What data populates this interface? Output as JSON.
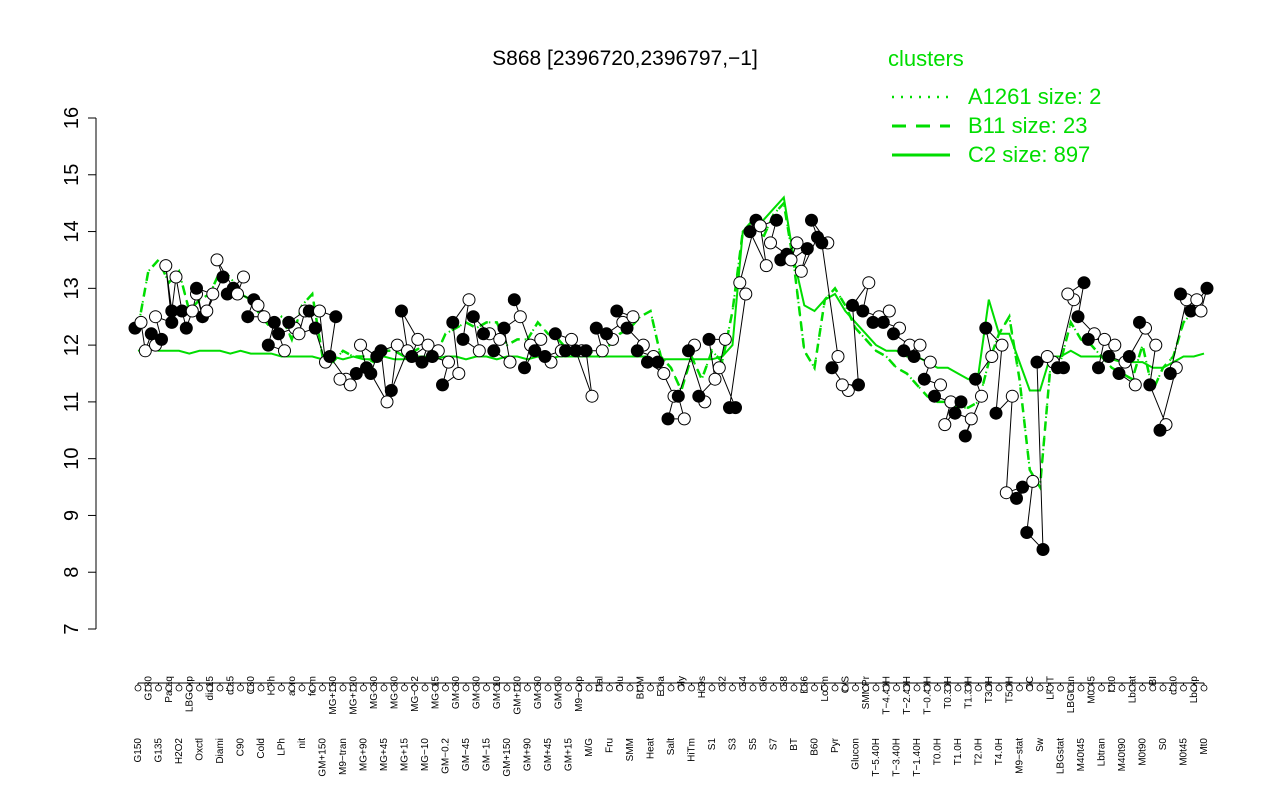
{
  "chart_data": {
    "type": "line",
    "title": "S868 [2396720,2396797,−1]",
    "xlabel": "",
    "ylabel": "",
    "ylim": [
      7,
      16
    ],
    "yticks": [
      7,
      8,
      9,
      10,
      11,
      12,
      13,
      14,
      15,
      16
    ],
    "x_tick_labels": [
      "G150",
      "G180",
      "G135",
      "Paraq",
      "H2O2",
      "LBGexp",
      "Oxctl",
      "dia15",
      "Diami",
      "dia5",
      "C90",
      "C30",
      "Cold",
      "HPh",
      "LPh",
      "aero",
      "nit",
      "ferm",
      "GM+150",
      "MG+150",
      "M9−tran",
      "MG+120",
      "MG+90",
      "MG+60",
      "MG+45",
      "MG+30",
      "MG+15",
      "MG−0.2",
      "MG−10",
      "MG−15",
      "GM−0.2",
      "GM−60",
      "GM−45",
      "GM−30",
      "GM−15",
      "GM−10",
      "GM+150",
      "GM+120",
      "GM+90",
      "GM+60",
      "GM+45",
      "GM+30",
      "GM+15",
      "M9−exp",
      "M/G",
      "Mal",
      "Fru",
      "Glu",
      "SMM",
      "BMM",
      "Heat",
      "Etha",
      "Salt",
      "Gly",
      "HiTm",
      "HiOs",
      "S1",
      "S2",
      "S3",
      "S4",
      "S5",
      "S6",
      "S7",
      "S8",
      "BT",
      "B36",
      "B60",
      "LoTm",
      "Pyr",
      "G/S",
      "Glucon",
      "SMMPr",
      "T−5.40H",
      "T−4.40H",
      "T−3.40H",
      "T−2.40H",
      "T−1.40H",
      "T−0.40H",
      "T0.0H",
      "T0.30H",
      "T1.0H",
      "T1.30H",
      "T2.0H",
      "T3.0H",
      "T4.0H",
      "T5.0H",
      "M9−stat",
      "BC",
      "Sw",
      "LPhT",
      "LBGstat",
      "LBGtran",
      "M40t45",
      "M0t45",
      "Lbtran",
      "Mt0",
      "M40t90",
      "Lbstat",
      "M0t90",
      "BI",
      "S0",
      "dia0",
      "M0t45",
      "Lbexp",
      "Mt0"
    ],
    "series": [
      {
        "name": "A1261 size: 2",
        "style": "dotted",
        "values": [
          12.3,
          13.3,
          13.5,
          13.1,
          13.3,
          12.6,
          12.8,
          12.9,
          13.3,
          13.2,
          12.9,
          12.8,
          12.5,
          12.3,
          12.5,
          12.1,
          12.7,
          12.9,
          11.8,
          11.7,
          11.9,
          11.8,
          11.8,
          11.7,
          11.9,
          11.9,
          11.8,
          11.9,
          12.0,
          11.8,
          12.2,
          12.3,
          12.4,
          12.3,
          12.4,
          12.4,
          12.0,
          12.1,
          12.1,
          12.4,
          12.2,
          12.1,
          11.9,
          11.8,
          11.9,
          11.8,
          12.0,
          12.2,
          12.3,
          12.5,
          12.6,
          11.8,
          11.6,
          11.2,
          11.8,
          11.4,
          11.9,
          11.7,
          12.6,
          14.0,
          14.2,
          13.9,
          14.3,
          14.5,
          13.4,
          11.9,
          11.6,
          12.8,
          13.0,
          12.7,
          12.3,
          12.1,
          11.9,
          11.8,
          11.6,
          11.5,
          11.3,
          11.1,
          11.0,
          11.0,
          10.9,
          10.9,
          11.0,
          11.7,
          12.2,
          12.5,
          11.4,
          9.8,
          9.5,
          11.6,
          11.7,
          12.4,
          12.1,
          12.0,
          11.8,
          11.6,
          11.5,
          11.4,
          12.0,
          11.2,
          11.6,
          11.8,
          12.4,
          12.6,
          12.6
        ]
      },
      {
        "name": "B11 size: 23",
        "style": "dashed",
        "values": [
          12.3,
          13.3,
          13.5,
          13.1,
          13.3,
          12.6,
          12.8,
          12.9,
          13.3,
          13.2,
          12.9,
          12.8,
          12.5,
          12.3,
          12.5,
          12.1,
          12.7,
          12.9,
          11.8,
          11.7,
          11.9,
          11.8,
          11.8,
          11.7,
          11.9,
          11.9,
          11.8,
          11.9,
          12.0,
          11.8,
          12.2,
          12.3,
          12.4,
          12.3,
          12.4,
          12.4,
          12.0,
          12.1,
          12.1,
          12.4,
          12.2,
          12.1,
          11.9,
          11.8,
          11.9,
          11.8,
          12.0,
          12.2,
          12.3,
          12.5,
          12.6,
          11.8,
          11.6,
          11.2,
          11.8,
          11.4,
          11.9,
          11.7,
          12.6,
          14.0,
          14.2,
          13.9,
          14.3,
          14.5,
          13.4,
          11.9,
          11.6,
          12.8,
          13.0,
          12.7,
          12.3,
          12.1,
          11.9,
          11.8,
          11.6,
          11.5,
          11.3,
          11.1,
          11.0,
          11.0,
          10.9,
          10.9,
          11.0,
          11.7,
          12.2,
          12.5,
          11.4,
          9.8,
          9.5,
          11.6,
          11.7,
          12.4,
          12.1,
          12.0,
          11.8,
          11.6,
          11.5,
          11.4,
          12.0,
          11.2,
          11.6,
          11.8,
          12.4,
          12.6,
          12.6
        ]
      },
      {
        "name": "C2 size: 897",
        "style": "solid",
        "values": [
          11.9,
          11.95,
          11.9,
          11.9,
          11.9,
          11.85,
          11.9,
          11.9,
          11.9,
          11.85,
          11.9,
          11.85,
          11.85,
          11.85,
          11.8,
          11.8,
          11.8,
          11.8,
          11.75,
          11.8,
          11.75,
          11.8,
          11.75,
          11.75,
          11.8,
          11.75,
          11.75,
          11.8,
          11.8,
          11.75,
          11.8,
          11.8,
          11.75,
          11.8,
          11.8,
          11.75,
          11.8,
          11.8,
          11.75,
          11.8,
          11.75,
          11.8,
          11.8,
          11.8,
          11.8,
          11.8,
          11.8,
          11.8,
          11.8,
          11.8,
          11.8,
          11.75,
          11.75,
          11.75,
          11.75,
          11.75,
          11.75,
          11.8,
          12.0,
          14.0,
          14.2,
          14.2,
          14.4,
          14.6,
          13.5,
          12.7,
          12.6,
          12.8,
          12.9,
          12.6,
          12.4,
          12.2,
          12.0,
          11.9,
          11.9,
          11.8,
          11.8,
          11.7,
          11.6,
          11.6,
          11.5,
          11.4,
          11.5,
          12.8,
          12.2,
          12.2,
          11.7,
          11.2,
          11.2,
          11.8,
          11.8,
          11.9,
          11.8,
          11.8,
          11.8,
          11.75,
          11.7,
          11.7,
          11.7,
          11.6,
          11.6,
          11.7,
          11.8,
          11.8,
          11.85
        ]
      }
    ],
    "points": [
      [
        0,
        12.3
      ],
      [
        0,
        12.4
      ],
      [
        1,
        11.9
      ],
      [
        1,
        12.2
      ],
      [
        2,
        12.0
      ],
      [
        2,
        12.1
      ],
      [
        2,
        12.5
      ],
      [
        3,
        12.4
      ],
      [
        3,
        13.4
      ],
      [
        3,
        12.6
      ],
      [
        4,
        13.2
      ],
      [
        4,
        12.6
      ],
      [
        5,
        12.3
      ],
      [
        5,
        12.6
      ],
      [
        6,
        12.9
      ],
      [
        6,
        12.5
      ],
      [
        6,
        13.0
      ],
      [
        7,
        12.9
      ],
      [
        7,
        12.6
      ],
      [
        8,
        13.2
      ],
      [
        8,
        13.5
      ],
      [
        9,
        13.0
      ],
      [
        9,
        12.9
      ],
      [
        10,
        13.2
      ],
      [
        10,
        12.9
      ],
      [
        11,
        12.8
      ],
      [
        11,
        12.5
      ],
      [
        12,
        12.5
      ],
      [
        12,
        12.7
      ],
      [
        13,
        12.4
      ],
      [
        13,
        12.0
      ],
      [
        14,
        11.9
      ],
      [
        14,
        12.2
      ],
      [
        15,
        12.3
      ],
      [
        15,
        12.4
      ],
      [
        16,
        12.6
      ],
      [
        16,
        12.2
      ],
      [
        17,
        12.3
      ],
      [
        17,
        12.6
      ],
      [
        18,
        11.7
      ],
      [
        18,
        12.6
      ],
      [
        19,
        12.5
      ],
      [
        19,
        11.8
      ],
      [
        20,
        11.4
      ],
      [
        20,
        11.4
      ],
      [
        21,
        11.5
      ],
      [
        21,
        11.3
      ],
      [
        22,
        11.6
      ],
      [
        22,
        12.0
      ],
      [
        23,
        11.8
      ],
      [
        23,
        11.5
      ],
      [
        24,
        11.0
      ],
      [
        24,
        11.9
      ],
      [
        25,
        12.0
      ],
      [
        25,
        11.2
      ],
      [
        26,
        11.9
      ],
      [
        26,
        12.6
      ],
      [
        27,
        12.1
      ],
      [
        27,
        11.8
      ],
      [
        28,
        12.0
      ],
      [
        28,
        11.7
      ],
      [
        29,
        11.9
      ],
      [
        29,
        11.8
      ],
      [
        30,
        11.7
      ],
      [
        30,
        11.3
      ],
      [
        31,
        11.5
      ],
      [
        31,
        12.4
      ],
      [
        32,
        12.8
      ],
      [
        32,
        12.1
      ],
      [
        33,
        11.9
      ],
      [
        33,
        12.5
      ],
      [
        34,
        12.2
      ],
      [
        34,
        12.2
      ],
      [
        35,
        12.1
      ],
      [
        35,
        11.9
      ],
      [
        36,
        11.7
      ],
      [
        36,
        12.3
      ],
      [
        37,
        12.5
      ],
      [
        37,
        12.8
      ],
      [
        38,
        12.0
      ],
      [
        38,
        11.6
      ],
      [
        39,
        12.1
      ],
      [
        39,
        11.9
      ],
      [
        40,
        11.7
      ],
      [
        40,
        11.8
      ],
      [
        41,
        11.9
      ],
      [
        41,
        12.2
      ],
      [
        42,
        12.1
      ],
      [
        42,
        11.9
      ],
      [
        43,
        11.9
      ],
      [
        43,
        11.9
      ],
      [
        44,
        11.1
      ],
      [
        44,
        11.9
      ],
      [
        45,
        11.9
      ],
      [
        45,
        12.3
      ],
      [
        46,
        12.1
      ],
      [
        46,
        12.2
      ],
      [
        47,
        12.4
      ],
      [
        47,
        12.6
      ],
      [
        48,
        12.5
      ],
      [
        48,
        12.3
      ],
      [
        49,
        12.0
      ],
      [
        49,
        11.9
      ],
      [
        50,
        11.8
      ],
      [
        50,
        11.7
      ],
      [
        51,
        11.5
      ],
      [
        51,
        11.7
      ],
      [
        52,
        11.1
      ],
      [
        52,
        10.7
      ],
      [
        53,
        10.7
      ],
      [
        53,
        11.1
      ],
      [
        54,
        12.0
      ],
      [
        54,
        11.9
      ],
      [
        55,
        11.0
      ],
      [
        55,
        11.1
      ],
      [
        56,
        11.4
      ],
      [
        56,
        12.1
      ],
      [
        57,
        12.1
      ],
      [
        57,
        11.6
      ],
      [
        58,
        10.9
      ],
      [
        58,
        10.9
      ],
      [
        59,
        12.9
      ],
      [
        59,
        13.1
      ],
      [
        60,
        14.2
      ],
      [
        60,
        14.0
      ],
      [
        61,
        13.4
      ],
      [
        61,
        14.1
      ],
      [
        62,
        14.2
      ],
      [
        62,
        13.8
      ],
      [
        63,
        13.6
      ],
      [
        63,
        13.5
      ],
      [
        64,
        13.8
      ],
      [
        64,
        13.5
      ],
      [
        65,
        13.7
      ],
      [
        65,
        13.3
      ],
      [
        66,
        13.9
      ],
      [
        66,
        14.2
      ],
      [
        67,
        13.8
      ],
      [
        67,
        13.8
      ],
      [
        68,
        11.8
      ],
      [
        68,
        11.6
      ],
      [
        69,
        11.2
      ],
      [
        69,
        11.3
      ],
      [
        70,
        11.3
      ],
      [
        70,
        12.7
      ],
      [
        71,
        13.1
      ],
      [
        71,
        12.6
      ],
      [
        72,
        12.5
      ],
      [
        72,
        12.4
      ],
      [
        73,
        12.6
      ],
      [
        73,
        12.4
      ],
      [
        74,
        12.3
      ],
      [
        74,
        12.2
      ],
      [
        75,
        12.0
      ],
      [
        75,
        11.9
      ],
      [
        76,
        12.0
      ],
      [
        76,
        11.8
      ],
      [
        77,
        11.7
      ],
      [
        77,
        11.4
      ],
      [
        78,
        11.3
      ],
      [
        78,
        11.1
      ],
      [
        79,
        11.0
      ],
      [
        79,
        10.6
      ],
      [
        80,
        11.0
      ],
      [
        80,
        10.8
      ],
      [
        81,
        10.7
      ],
      [
        81,
        10.4
      ],
      [
        82,
        11.1
      ],
      [
        82,
        11.4
      ],
      [
        83,
        11.8
      ],
      [
        83,
        12.3
      ],
      [
        84,
        12.0
      ],
      [
        84,
        10.8
      ],
      [
        85,
        11.1
      ],
      [
        85,
        9.4
      ],
      [
        86,
        9.5
      ],
      [
        86,
        9.3
      ],
      [
        87,
        9.6
      ],
      [
        87,
        8.7
      ],
      [
        88,
        8.4
      ],
      [
        88,
        11.7
      ],
      [
        89,
        11.7
      ],
      [
        89,
        11.8
      ],
      [
        90,
        11.6
      ],
      [
        90,
        11.6
      ],
      [
        91,
        12.8
      ],
      [
        91,
        12.9
      ],
      [
        92,
        13.1
      ],
      [
        92,
        12.5
      ],
      [
        93,
        12.2
      ],
      [
        93,
        12.1
      ],
      [
        94,
        12.1
      ],
      [
        94,
        11.6
      ],
      [
        95,
        12.0
      ],
      [
        95,
        11.8
      ],
      [
        96,
        11.7
      ],
      [
        96,
        11.5
      ],
      [
        97,
        11.3
      ],
      [
        97,
        11.8
      ],
      [
        98,
        12.3
      ],
      [
        98,
        12.4
      ],
      [
        99,
        12.0
      ],
      [
        99,
        11.3
      ],
      [
        100,
        10.6
      ],
      [
        100,
        10.5
      ],
      [
        101,
        11.6
      ],
      [
        101,
        11.5
      ],
      [
        102,
        12.8
      ],
      [
        102,
        12.9
      ],
      [
        103,
        12.8
      ],
      [
        103,
        12.6
      ],
      [
        104,
        13.0
      ],
      [
        104,
        12.6
      ]
    ],
    "point_fills": [
      "black",
      "white",
      "white",
      "black",
      "white",
      "black",
      "white",
      "black",
      "white",
      "black",
      "white",
      "black",
      "black",
      "white",
      "white",
      "black",
      "black",
      "white",
      "white",
      "black",
      "white",
      "black",
      "black",
      "white",
      "white",
      "black",
      "black",
      "white",
      "white",
      "black",
      "black",
      "white",
      "black",
      "white",
      "black",
      "white",
      "white",
      "black",
      "black",
      "white",
      "white",
      "black",
      "black",
      "white",
      "white",
      "black",
      "white",
      "black",
      "white",
      "black",
      "black",
      "white",
      "black",
      "white",
      "black",
      "white",
      "black",
      "white",
      "black",
      "white",
      "black",
      "white",
      "black",
      "white",
      "black",
      "white",
      "black",
      "white",
      "black",
      "white",
      "black",
      "white",
      "black",
      "white",
      "black",
      "white",
      "black",
      "white",
      "black",
      "white",
      "black",
      "white",
      "black",
      "white",
      "black",
      "white",
      "black",
      "white",
      "black",
      "white",
      "black",
      "white",
      "black",
      "white",
      "black",
      "white",
      "black",
      "white",
      "black",
      "white",
      "black",
      "white",
      "black",
      "white",
      "black",
      "white",
      "black",
      "white",
      "black",
      "white",
      "black",
      "white",
      "black",
      "white",
      "black",
      "white",
      "black",
      "white",
      "white",
      "black",
      "black",
      "white",
      "white",
      "black",
      "black",
      "white",
      "white",
      "black",
      "white",
      "black",
      "black",
      "white",
      "white",
      "black",
      "white",
      "black",
      "black",
      "white",
      "black",
      "white",
      "black",
      "white",
      "white",
      "black",
      "black",
      "white",
      "black",
      "white",
      "black",
      "white",
      "black",
      "white",
      "black",
      "white",
      "black",
      "white",
      "black",
      "white",
      "black",
      "white",
      "black",
      "white",
      "white",
      "black",
      "black",
      "white",
      "black",
      "white",
      "black",
      "white",
      "black",
      "white",
      "black",
      "white",
      "white",
      "black",
      "black",
      "white",
      "black",
      "black",
      "black",
      "white",
      "white",
      "black",
      "black",
      "white",
      "white",
      "black",
      "black",
      "white",
      "black",
      "white",
      "black",
      "white",
      "black",
      "white",
      "black",
      "white",
      "black",
      "white",
      "black",
      "white",
      "black",
      "white",
      "black",
      "white",
      "black",
      "white",
      "black",
      "white",
      "black"
    ],
    "legend": {
      "title": "clusters",
      "position": "top-right",
      "color": "#00dd00",
      "entries": [
        "A1261 size: 2",
        "B11 size: 23",
        "C2 size: 897"
      ]
    },
    "colors": {
      "cluster_lines": "#00dd00",
      "profile_line": "#000000",
      "axis": "#000000"
    }
  }
}
